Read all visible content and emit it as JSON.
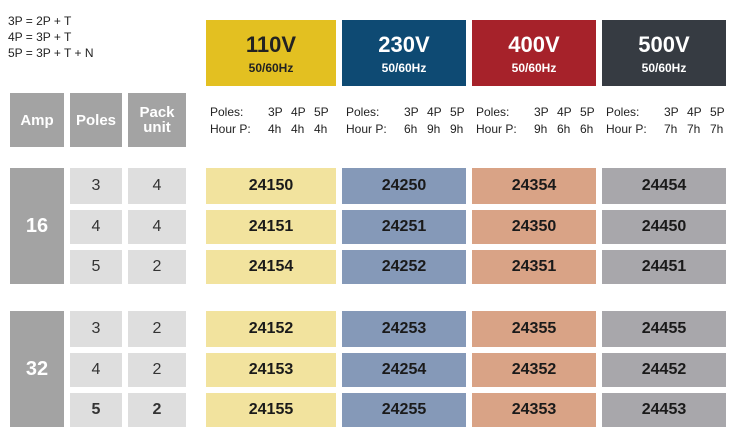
{
  "legend": [
    "3P = 2P + T",
    "4P = 3P + T",
    "5P = 3P + T + N"
  ],
  "header": {
    "amp": "Amp",
    "poles": "Poles",
    "pack_unit": "Pack unit"
  },
  "voltages": [
    {
      "voltage": "110V",
      "frequency": "50/60Hz",
      "poles_label": "Poles:",
      "hour_label": "Hour P:",
      "poles": [
        "3P",
        "4P",
        "5P"
      ],
      "hours": [
        "4h",
        "4h",
        "4h"
      ]
    },
    {
      "voltage": "230V",
      "frequency": "50/60Hz",
      "poles_label": "Poles:",
      "hour_label": "Hour P:",
      "poles": [
        "3P",
        "4P",
        "5P"
      ],
      "hours": [
        "6h",
        "9h",
        "9h"
      ]
    },
    {
      "voltage": "400V",
      "frequency": "50/60Hz",
      "poles_label": "Poles:",
      "hour_label": "Hour P:",
      "poles": [
        "3P",
        "4P",
        "5P"
      ],
      "hours": [
        "9h",
        "6h",
        "6h"
      ]
    },
    {
      "voltage": "500V",
      "frequency": "50/60Hz",
      "poles_label": "Poles:",
      "hour_label": "Hour P:",
      "poles": [
        "3P",
        "4P",
        "5P"
      ],
      "hours": [
        "7h",
        "7h",
        "7h"
      ]
    }
  ],
  "groups": [
    {
      "amp": "16",
      "rows": [
        {
          "poles": "3",
          "pack_unit": "4",
          "codes": [
            "24150",
            "24250",
            "24354",
            "24454"
          ]
        },
        {
          "poles": "4",
          "pack_unit": "4",
          "codes": [
            "24151",
            "24251",
            "24350",
            "24450"
          ]
        },
        {
          "poles": "5",
          "pack_unit": "2",
          "codes": [
            "24154",
            "24252",
            "24351",
            "24451"
          ]
        }
      ]
    },
    {
      "amp": "32",
      "rows": [
        {
          "poles": "3",
          "pack_unit": "2",
          "codes": [
            "24152",
            "24253",
            "24355",
            "24455"
          ]
        },
        {
          "poles": "4",
          "pack_unit": "2",
          "codes": [
            "24153",
            "24254",
            "24352",
            "24452"
          ]
        },
        {
          "poles": "5",
          "pack_unit": "2",
          "codes": [
            "24155",
            "24255",
            "24353",
            "24453"
          ]
        }
      ]
    }
  ]
}
